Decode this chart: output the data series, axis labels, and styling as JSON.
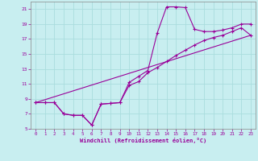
{
  "xlabel": "Windchill (Refroidissement éolien,°C)",
  "bg_color": "#c8eef0",
  "line_color": "#990099",
  "grid_color": "#aadddd",
  "xlim": [
    -0.5,
    23.5
  ],
  "ylim": [
    5,
    22
  ],
  "xticks": [
    0,
    1,
    2,
    3,
    4,
    5,
    6,
    7,
    8,
    9,
    10,
    11,
    12,
    13,
    14,
    15,
    16,
    17,
    18,
    19,
    20,
    21,
    22,
    23
  ],
  "yticks": [
    5,
    7,
    9,
    11,
    13,
    15,
    17,
    19,
    21
  ],
  "line1_x": [
    0,
    1,
    2,
    3,
    4,
    5,
    6,
    7,
    8,
    9,
    10,
    11,
    12,
    13,
    14,
    15,
    16,
    17,
    18,
    19,
    20,
    21,
    22,
    23
  ],
  "line1_y": [
    8.5,
    8.5,
    8.5,
    7.0,
    6.8,
    6.8,
    5.5,
    8.3,
    8.4,
    8.5,
    11.2,
    12.0,
    12.8,
    17.8,
    21.3,
    21.3,
    21.2,
    18.3,
    18.0,
    18.0,
    18.2,
    18.5,
    19.0,
    19.0
  ],
  "line2_x": [
    0,
    1,
    2,
    3,
    4,
    5,
    6,
    7,
    8,
    9,
    10,
    11,
    12,
    13,
    14,
    15,
    16,
    17,
    18,
    19,
    20,
    21,
    22,
    23
  ],
  "line2_y": [
    8.5,
    8.5,
    8.5,
    7.0,
    6.8,
    6.8,
    5.5,
    8.3,
    8.4,
    8.5,
    10.8,
    11.3,
    12.5,
    13.2,
    14.0,
    14.8,
    15.5,
    16.2,
    16.8,
    17.2,
    17.5,
    18.0,
    18.5,
    17.5
  ],
  "line3_x": [
    0,
    23
  ],
  "line3_y": [
    8.5,
    17.5
  ]
}
